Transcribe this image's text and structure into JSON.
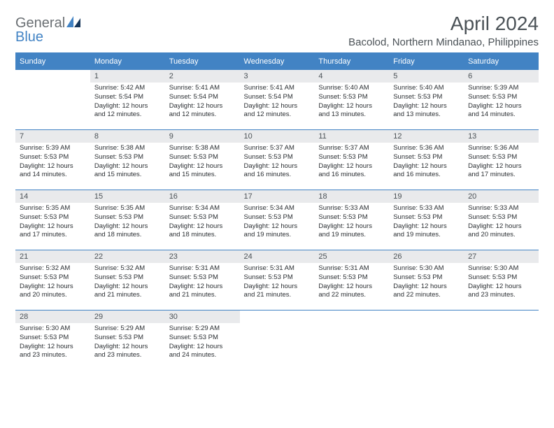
{
  "logo": {
    "word1": "General",
    "word2": "Blue"
  },
  "title": "April 2024",
  "location": "Bacolod, Northern Mindanao, Philippines",
  "colors": {
    "brand_blue": "#4283c4",
    "header_text": "#4b5257",
    "daynum_bg": "#e9eaec",
    "body_text": "#2b2f33",
    "logo_gray": "#6a6f73"
  },
  "weekdays": [
    "Sunday",
    "Monday",
    "Tuesday",
    "Wednesday",
    "Thursday",
    "Friday",
    "Saturday"
  ],
  "weeks": [
    [
      null,
      {
        "n": "1",
        "sr": "5:42 AM",
        "ss": "5:54 PM",
        "dl": "12 hours and 12 minutes."
      },
      {
        "n": "2",
        "sr": "5:41 AM",
        "ss": "5:54 PM",
        "dl": "12 hours and 12 minutes."
      },
      {
        "n": "3",
        "sr": "5:41 AM",
        "ss": "5:54 PM",
        "dl": "12 hours and 12 minutes."
      },
      {
        "n": "4",
        "sr": "5:40 AM",
        "ss": "5:53 PM",
        "dl": "12 hours and 13 minutes."
      },
      {
        "n": "5",
        "sr": "5:40 AM",
        "ss": "5:53 PM",
        "dl": "12 hours and 13 minutes."
      },
      {
        "n": "6",
        "sr": "5:39 AM",
        "ss": "5:53 PM",
        "dl": "12 hours and 14 minutes."
      }
    ],
    [
      {
        "n": "7",
        "sr": "5:39 AM",
        "ss": "5:53 PM",
        "dl": "12 hours and 14 minutes."
      },
      {
        "n": "8",
        "sr": "5:38 AM",
        "ss": "5:53 PM",
        "dl": "12 hours and 15 minutes."
      },
      {
        "n": "9",
        "sr": "5:38 AM",
        "ss": "5:53 PM",
        "dl": "12 hours and 15 minutes."
      },
      {
        "n": "10",
        "sr": "5:37 AM",
        "ss": "5:53 PM",
        "dl": "12 hours and 16 minutes."
      },
      {
        "n": "11",
        "sr": "5:37 AM",
        "ss": "5:53 PM",
        "dl": "12 hours and 16 minutes."
      },
      {
        "n": "12",
        "sr": "5:36 AM",
        "ss": "5:53 PM",
        "dl": "12 hours and 16 minutes."
      },
      {
        "n": "13",
        "sr": "5:36 AM",
        "ss": "5:53 PM",
        "dl": "12 hours and 17 minutes."
      }
    ],
    [
      {
        "n": "14",
        "sr": "5:35 AM",
        "ss": "5:53 PM",
        "dl": "12 hours and 17 minutes."
      },
      {
        "n": "15",
        "sr": "5:35 AM",
        "ss": "5:53 PM",
        "dl": "12 hours and 18 minutes."
      },
      {
        "n": "16",
        "sr": "5:34 AM",
        "ss": "5:53 PM",
        "dl": "12 hours and 18 minutes."
      },
      {
        "n": "17",
        "sr": "5:34 AM",
        "ss": "5:53 PM",
        "dl": "12 hours and 19 minutes."
      },
      {
        "n": "18",
        "sr": "5:33 AM",
        "ss": "5:53 PM",
        "dl": "12 hours and 19 minutes."
      },
      {
        "n": "19",
        "sr": "5:33 AM",
        "ss": "5:53 PM",
        "dl": "12 hours and 19 minutes."
      },
      {
        "n": "20",
        "sr": "5:33 AM",
        "ss": "5:53 PM",
        "dl": "12 hours and 20 minutes."
      }
    ],
    [
      {
        "n": "21",
        "sr": "5:32 AM",
        "ss": "5:53 PM",
        "dl": "12 hours and 20 minutes."
      },
      {
        "n": "22",
        "sr": "5:32 AM",
        "ss": "5:53 PM",
        "dl": "12 hours and 21 minutes."
      },
      {
        "n": "23",
        "sr": "5:31 AM",
        "ss": "5:53 PM",
        "dl": "12 hours and 21 minutes."
      },
      {
        "n": "24",
        "sr": "5:31 AM",
        "ss": "5:53 PM",
        "dl": "12 hours and 21 minutes."
      },
      {
        "n": "25",
        "sr": "5:31 AM",
        "ss": "5:53 PM",
        "dl": "12 hours and 22 minutes."
      },
      {
        "n": "26",
        "sr": "5:30 AM",
        "ss": "5:53 PM",
        "dl": "12 hours and 22 minutes."
      },
      {
        "n": "27",
        "sr": "5:30 AM",
        "ss": "5:53 PM",
        "dl": "12 hours and 23 minutes."
      }
    ],
    [
      {
        "n": "28",
        "sr": "5:30 AM",
        "ss": "5:53 PM",
        "dl": "12 hours and 23 minutes."
      },
      {
        "n": "29",
        "sr": "5:29 AM",
        "ss": "5:53 PM",
        "dl": "12 hours and 23 minutes."
      },
      {
        "n": "30",
        "sr": "5:29 AM",
        "ss": "5:53 PM",
        "dl": "12 hours and 24 minutes."
      },
      null,
      null,
      null,
      null
    ]
  ],
  "labels": {
    "sunrise": "Sunrise:",
    "sunset": "Sunset:",
    "daylight": "Daylight:"
  }
}
